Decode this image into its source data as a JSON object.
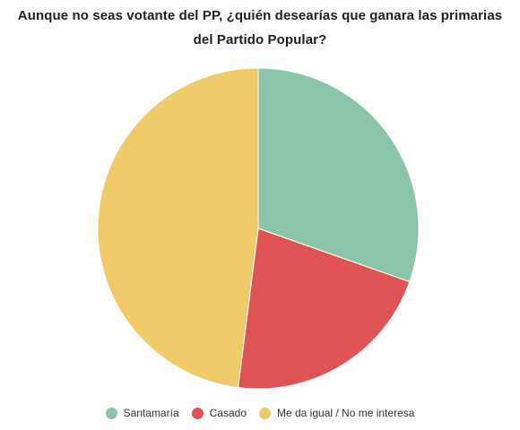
{
  "chart_data": {
    "type": "pie",
    "title_lines": [
      "Aunque no seas votante del PP, ¿quién desearías que ganara las primarias",
      "del Partido Popular?"
    ],
    "categories": [
      "Santamaría",
      "Casado",
      "Me da igual / No me interesa"
    ],
    "values": [
      30.4,
      21.6,
      48.0
    ],
    "colors": [
      "#8cc4a9",
      "#e05354",
      "#efca69"
    ],
    "start_angle": "12 o'clock",
    "direction": "clockwise",
    "legend_position": "bottom"
  }
}
